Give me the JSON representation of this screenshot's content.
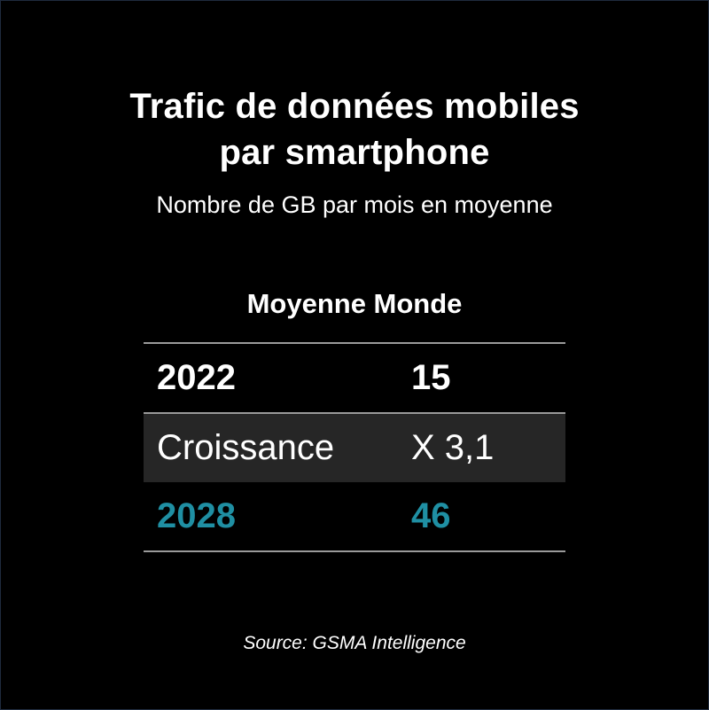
{
  "title_line1": "Trafic de données mobiles",
  "title_line2": "par smartphone",
  "subtitle": "Nombre de GB par mois en moyenne",
  "section_header": "Moyenne Monde",
  "rows": [
    {
      "label": "2022",
      "value": "15",
      "color": "#ffffff",
      "bold": true
    },
    {
      "label": "Croissance",
      "value": "X 3,1",
      "color": "#ffffff",
      "bold": false
    },
    {
      "label": "2028",
      "value": "46",
      "color": "#1f8fa3",
      "bold": true
    }
  ],
  "source": "Source: GSMA Intelligence",
  "colors": {
    "background": "#000000",
    "accent": "#1f8fa3",
    "shaded_row": "#262626"
  }
}
